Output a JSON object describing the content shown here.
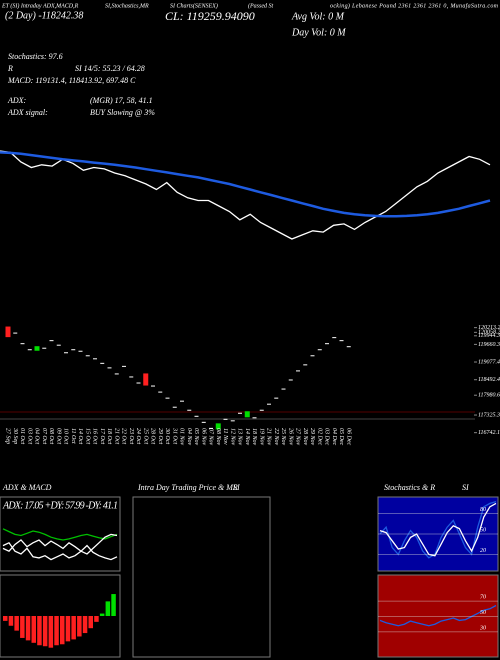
{
  "header": {
    "t1": "ET (SI) Intraday ADX,MACD,R",
    "t2": "SI,Stochastics,MR",
    "t3": "SI Charts(SENSEX)",
    "t4": "(Passed St",
    "t5": "ocking) Lebanese Pound 2361 2361 2361 0, MunafaSutra.com",
    "day": "(2 Day) -118242.38",
    "cl": "CL: 119259.94090",
    "avg": "Avg Vol: 0  M",
    "dayvol": "Day Vol: 0  M",
    "stoch": "Stochastics: 97.6",
    "rsi_a": "R",
    "rsi_b": "SI 14/5: 55.23 / 64.28",
    "macd": "MACD: 119131.4, 118413.92, 697.48  C",
    "adx_a": "ADX:",
    "adx_b": "(MGR) 17, 58, 41.1",
    "sig_a": "ADX  signal:",
    "sig_b": "BUY Slowing @ 3%"
  },
  "chart_data": [
    {
      "type": "line",
      "categories": [
        "27 Sep",
        "30 Sep",
        "01 Oct",
        "03 Oct",
        "04 Oct",
        "07 Oct",
        "08 Oct",
        "09 Oct",
        "10 Oct",
        "11 Oct",
        "14 Oct",
        "15 Oct",
        "16 Oct",
        "17 Oct",
        "18 Oct",
        "21 Oct",
        "22 Oct",
        "23 Oct",
        "24 Oct",
        "25 Oct",
        "28 Oct",
        "29 Oct",
        "30 Oct",
        "31 Oct",
        "01 Nov",
        "04 Nov",
        "05 Nov",
        "06 Nov",
        "07 Nov",
        "08 Nov",
        "11 Nov",
        "12 Nov",
        "13 Nov",
        "14 Nov",
        "18 Nov",
        "19 Nov",
        "21 Nov",
        "22 Nov",
        "25 Nov",
        "26 Nov",
        "27 Nov",
        "28 Nov",
        "29 Nov",
        "02 Dec",
        "03 Dec",
        "04 Dec",
        "05 Dec",
        "06 Dec"
      ],
      "series": [
        {
          "color": "#ffffff",
          "values": [
            120100,
            120050,
            119700,
            119500,
            119600,
            119550,
            119800,
            119650,
            119400,
            119500,
            119450,
            119300,
            119200,
            119050,
            118900,
            118700,
            118950,
            118600,
            118400,
            118300,
            118300,
            118100,
            117900,
            117600,
            117800,
            117500,
            117300,
            117100,
            116900,
            117050,
            117200,
            117150,
            117400,
            117450,
            117250,
            117500,
            117700,
            117900,
            118200,
            118500,
            118800,
            119000,
            119300,
            119500,
            119700,
            119900,
            119800,
            119600
          ]
        },
        {
          "color": "#1e5be0",
          "values": [
            120050,
            120030,
            120000,
            119950,
            119900,
            119850,
            119800,
            119760,
            119720,
            119680,
            119640,
            119600,
            119550,
            119500,
            119440,
            119380,
            119320,
            119260,
            119200,
            119140,
            119060,
            118980,
            118900,
            118800,
            118700,
            118600,
            118500,
            118400,
            118300,
            118200,
            118100,
            118000,
            117920,
            117850,
            117800,
            117760,
            117740,
            117730,
            117730,
            117740,
            117760,
            117800,
            117850,
            117920,
            118000,
            118100,
            118200,
            118300
          ]
        }
      ],
      "ylim": [
        116500,
        120500
      ]
    },
    {
      "type": "candlestick",
      "open": [
        120250,
        120050,
        119700,
        119500,
        119450,
        119550,
        119800,
        119650,
        119400,
        119500,
        119450,
        119300,
        119200,
        119050,
        118900,
        118700,
        118950,
        118600,
        118400,
        118700,
        118300,
        118100,
        117900,
        117600,
        117800,
        117500,
        117300,
        117100,
        116900,
        116850,
        117200,
        117150,
        117400,
        117250,
        117250,
        117500,
        117700,
        117900,
        118200,
        118500,
        118800,
        119000,
        119300,
        119500,
        119700,
        119900,
        119800,
        119600
      ],
      "close": [
        119900,
        120050,
        119700,
        119500,
        119600,
        119550,
        119800,
        119650,
        119400,
        119500,
        119450,
        119300,
        119200,
        119050,
        118900,
        118700,
        118950,
        118600,
        118400,
        118300,
        118300,
        118100,
        117900,
        117600,
        117800,
        117500,
        117300,
        117100,
        116900,
        117050,
        117200,
        117150,
        117400,
        117450,
        117250,
        117500,
        117700,
        117900,
        118200,
        118500,
        118800,
        119000,
        119300,
        119500,
        119700,
        119900,
        119800,
        119600
      ],
      "ylim": [
        116500,
        120400
      ],
      "yticks": [
        120213.2,
        120058.2,
        119944.3,
        119660.3,
        119077.4,
        118492.4,
        117980.6,
        117325.3,
        116742.1
      ]
    },
    {
      "type": "line",
      "title": "ADX  & MACD",
      "label": "ADX: 17.05 +DY: 57.99 -DY: 41.1",
      "series": [
        {
          "color": "#00c000",
          "values": [
            70,
            65,
            60,
            58,
            62,
            66,
            64,
            60,
            55,
            52,
            50,
            52,
            55,
            58,
            60,
            57,
            54,
            52,
            56,
            60
          ]
        },
        {
          "color": "#ffffff",
          "values": [
            40,
            45,
            30,
            25,
            35,
            20,
            18,
            22,
            15,
            20,
            25,
            18,
            22,
            30,
            25,
            35,
            45,
            55,
            60,
            58
          ]
        },
        {
          "color": "#ffffff",
          "values": [
            35,
            30,
            42,
            50,
            38,
            45,
            50,
            40,
            48,
            42,
            35,
            45,
            38,
            30,
            40,
            28,
            22,
            18,
            15,
            20
          ]
        }
      ],
      "ylim": [
        0,
        100
      ]
    },
    {
      "type": "bar",
      "values": [
        -100,
        -200,
        -300,
        -450,
        -500,
        -550,
        -600,
        -620,
        -650,
        -600,
        -580,
        -520,
        -480,
        -420,
        -350,
        -250,
        -120,
        50,
        300,
        450
      ],
      "ylim": [
        -800,
        800
      ]
    },
    {
      "type": "panel",
      "title": "Intra Day Trading Price  & MR",
      "title2": "SI"
    },
    {
      "type": "line",
      "title": "Stochastics & R",
      "title2": "SI",
      "series": [
        {
          "color": "#1e5be0",
          "values": [
            50,
            60,
            30,
            20,
            40,
            55,
            45,
            25,
            15,
            20,
            45,
            60,
            70,
            50,
            30,
            20,
            60,
            90,
            95,
            97.6
          ]
        },
        {
          "color": "#ffffff",
          "values": [
            55,
            52,
            40,
            28,
            30,
            45,
            50,
            35,
            20,
            18,
            35,
            52,
            62,
            58,
            40,
            25,
            45,
            75,
            90,
            95
          ]
        }
      ],
      "ylim": [
        0,
        100
      ],
      "yticks": [
        20,
        50,
        80
      ]
    },
    {
      "type": "line",
      "series": [
        {
          "color": "#1e5be0",
          "values": [
            45,
            42,
            40,
            38,
            40,
            44,
            42,
            40,
            38,
            40,
            44,
            46,
            48,
            45,
            46,
            50,
            54,
            58,
            60,
            64.28
          ]
        }
      ],
      "ylim": [
        0,
        100
      ],
      "yticks": [
        30,
        50,
        70
      ]
    }
  ]
}
